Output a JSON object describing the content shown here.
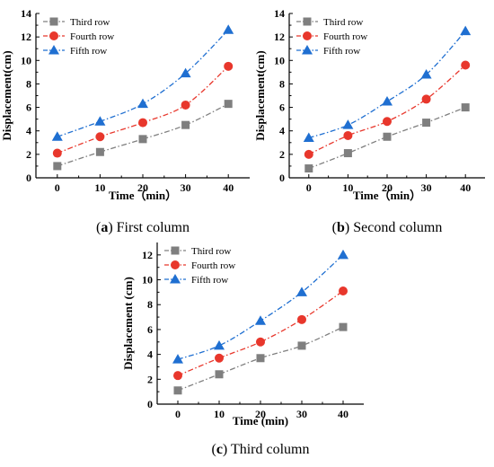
{
  "chart_data": [
    {
      "type": "line",
      "caption_letter": "a",
      "caption_rest": "First column",
      "xlabel": "Time（min）",
      "ylabel": "Displacement(cm)",
      "x": [
        0,
        10,
        20,
        30,
        40
      ],
      "xticks": [
        "0",
        "10",
        "20",
        "30",
        "40"
      ],
      "xlim": [
        -5,
        45
      ],
      "ylim": [
        0,
        14
      ],
      "yticks": [
        "0",
        "2",
        "4",
        "6",
        "8",
        "10",
        "12",
        "14"
      ],
      "legend": "top-left",
      "series": [
        {
          "name": "Third row",
          "marker": "square",
          "color": "#7f7f7f",
          "values": [
            1.0,
            2.2,
            3.3,
            4.5,
            6.3
          ]
        },
        {
          "name": "Fourth row",
          "marker": "circle",
          "color": "#e8372c",
          "values": [
            2.1,
            3.5,
            4.7,
            6.2,
            9.5
          ]
        },
        {
          "name": "Fifth row",
          "marker": "triangle",
          "color": "#1f6fd1",
          "values": [
            3.5,
            4.8,
            6.3,
            8.9,
            12.6
          ]
        }
      ]
    },
    {
      "type": "line",
      "caption_letter": "b",
      "caption_rest": "Second column",
      "xlabel": "Time（min）",
      "ylabel": "Displacement(cm)",
      "x": [
        0,
        10,
        20,
        30,
        40
      ],
      "xticks": [
        "0",
        "10",
        "20",
        "30",
        "40"
      ],
      "xlim": [
        -5,
        45
      ],
      "ylim": [
        0,
        14
      ],
      "yticks": [
        "0",
        "2",
        "4",
        "6",
        "8",
        "10",
        "12",
        "14"
      ],
      "legend": "top-left",
      "series": [
        {
          "name": "Third row",
          "marker": "square",
          "color": "#7f7f7f",
          "values": [
            0.8,
            2.1,
            3.5,
            4.7,
            6.0
          ]
        },
        {
          "name": "Fourth row",
          "marker": "circle",
          "color": "#e8372c",
          "values": [
            2.0,
            3.6,
            4.8,
            6.7,
            9.6
          ]
        },
        {
          "name": "Fifth row",
          "marker": "triangle",
          "color": "#1f6fd1",
          "values": [
            3.4,
            4.5,
            6.5,
            8.8,
            12.5
          ]
        }
      ]
    },
    {
      "type": "line",
      "caption_letter": "c",
      "caption_rest": "Third column",
      "xlabel": "Time (min)",
      "ylabel": "Displacement (cm)",
      "x": [
        0,
        10,
        20,
        30,
        40
      ],
      "xticks": [
        "0",
        "10",
        "20",
        "30",
        "40"
      ],
      "xlim": [
        -5,
        45
      ],
      "ylim": [
        0,
        13
      ],
      "yticks": [
        "0",
        "2",
        "4",
        "6",
        "8",
        "10",
        "12"
      ],
      "legend": "top-left",
      "series": [
        {
          "name": "Third row",
          "marker": "square",
          "color": "#7f7f7f",
          "values": [
            1.1,
            2.4,
            3.7,
            4.7,
            6.2
          ]
        },
        {
          "name": "Fourth row",
          "marker": "circle",
          "color": "#e8372c",
          "values": [
            2.3,
            3.7,
            5.0,
            6.8,
            9.1
          ]
        },
        {
          "name": "Fifth row",
          "marker": "triangle",
          "color": "#1f6fd1",
          "values": [
            3.6,
            4.7,
            6.7,
            9.0,
            12.0
          ]
        }
      ]
    }
  ]
}
